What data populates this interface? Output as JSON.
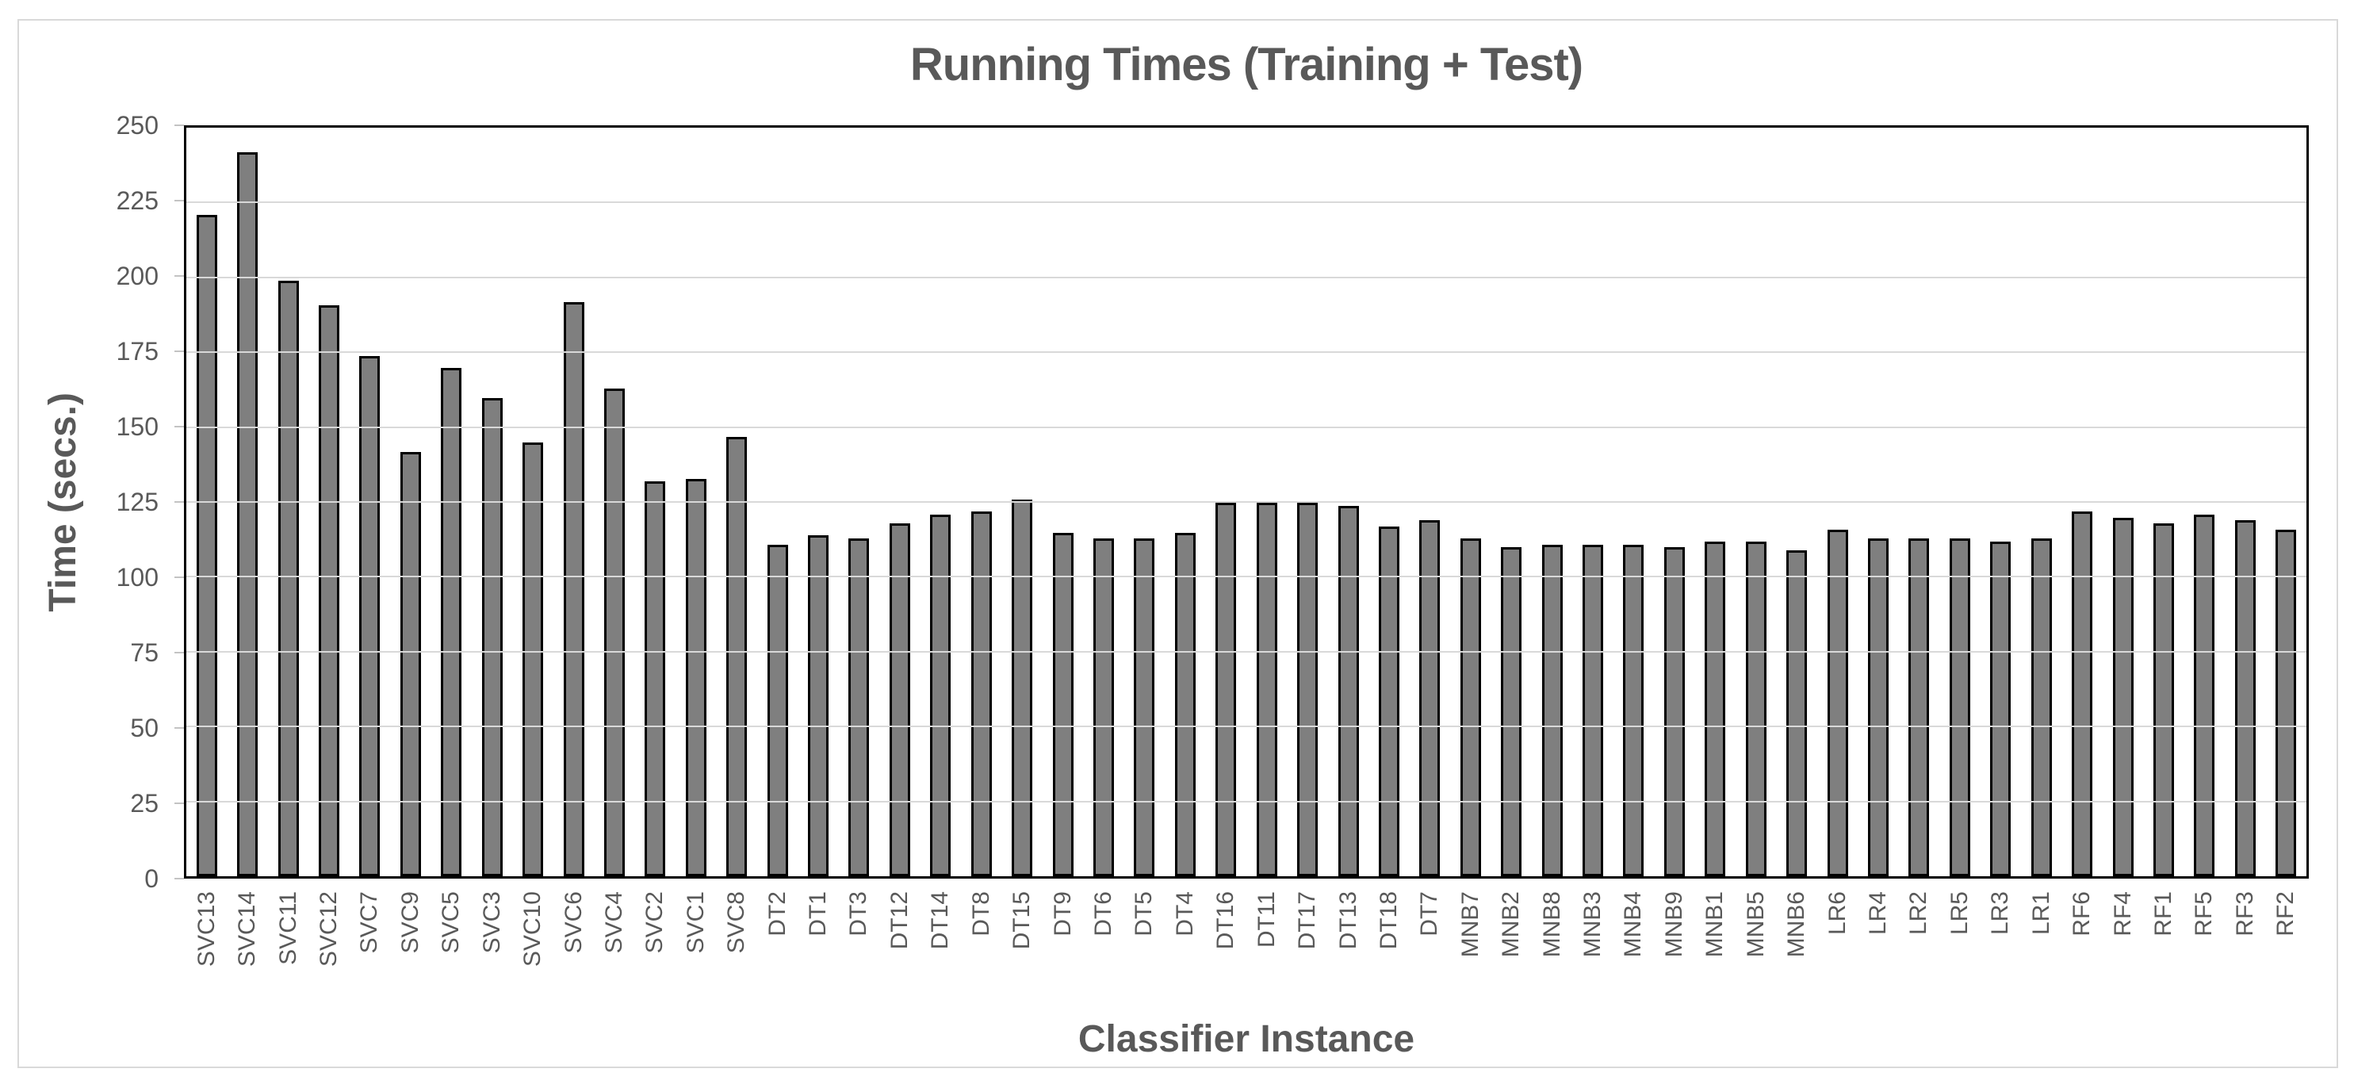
{
  "chart": {
    "title": "Running Times (Training + Test)",
    "y_axis_title": "Time (secs.)",
    "x_axis_title": "Classifier Instance"
  },
  "colors": {
    "bar_fill": "#7f7f7f",
    "bar_border": "#000000",
    "gridline": "#d9d9d9",
    "plot_border": "#000000",
    "text": "#595959",
    "outer_border": "#d9d9d9",
    "tick_mark": "#c3c3c3"
  },
  "chart_data": {
    "type": "bar",
    "title": "Running Times (Training + Test)",
    "xlabel": "Classifier Instance",
    "ylabel": "Time (secs.)",
    "ylim": [
      0,
      250
    ],
    "ytick_step": 25,
    "ytick_labels": [
      "0",
      "25",
      "50",
      "75",
      "100",
      "125",
      "150",
      "175",
      "200",
      "225",
      "250"
    ],
    "grid": true,
    "legend": false,
    "categories": [
      "SVC13",
      "SVC14",
      "SVC11",
      "SVC12",
      "SVC7",
      "SVC9",
      "SVC5",
      "SVC3",
      "SVC10",
      "SVC6",
      "SVC4",
      "SVC2",
      "SVC1",
      "SVC8",
      "DT2",
      "DT1",
      "DT3",
      "DT12",
      "DT14",
      "DT8",
      "DT15",
      "DT9",
      "DT6",
      "DT5",
      "DT4",
      "DT16",
      "DT11",
      "DT17",
      "DT13",
      "DT18",
      "DT7",
      "MNB7",
      "MNB2",
      "MNB8",
      "MNB3",
      "MNB4",
      "MNB9",
      "MNB1",
      "MNB5",
      "MNB6",
      "LR6",
      "LR4",
      "LR2",
      "LR5",
      "LR3",
      "LR1",
      "RF6",
      "RF4",
      "RF1",
      "RF5",
      "RF3",
      "RF2"
    ],
    "values": [
      220,
      241,
      198,
      190,
      173,
      141,
      169,
      159,
      144,
      191,
      162,
      131,
      132,
      146,
      110,
      113,
      112,
      117,
      120,
      121,
      125,
      114,
      112,
      112,
      114,
      124,
      124,
      124,
      123,
      116,
      118,
      112,
      109,
      110,
      110,
      110,
      109,
      111,
      111,
      108,
      115,
      112,
      112,
      112,
      111,
      112,
      121,
      119,
      117,
      120,
      118,
      115
    ]
  }
}
